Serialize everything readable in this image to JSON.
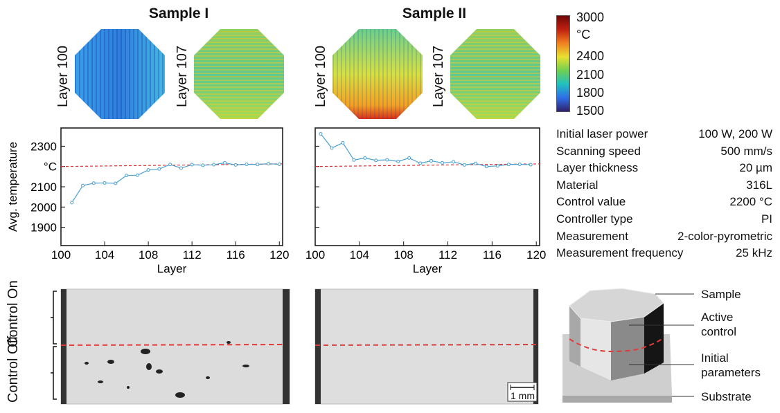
{
  "samples": [
    {
      "title": "Sample I",
      "layers": [
        "Layer 100",
        "Layer 107"
      ]
    },
    {
      "title": "Sample II",
      "layers": [
        "Layer 100",
        "Layer 107"
      ]
    }
  ],
  "colorbar": {
    "unit": "°C",
    "ticks": [
      "3000",
      "2400",
      "2100",
      "1800",
      "1500"
    ],
    "colormap": "jet",
    "range": [
      1500,
      3000
    ]
  },
  "chart_data": [
    {
      "type": "line",
      "xlabel": "Layer",
      "ylabel": "Avg. temperature",
      "xlim": [
        100,
        120.3
      ],
      "ylim": [
        1810,
        2390
      ],
      "xticks": [
        "100",
        "104",
        "108",
        "112",
        "116",
        "120"
      ],
      "yticks": [
        {
          "v": 2300,
          "label": "2300"
        },
        {
          "v": 2200,
          "label": "°C"
        },
        {
          "v": 2100,
          "label": "2100"
        },
        {
          "v": 2000,
          "label": "2000"
        },
        {
          "v": 1900,
          "label": "1900"
        }
      ],
      "grid": false,
      "series_color": "#4a9fd0",
      "reference_color": "#e03030",
      "reference": {
        "x": [
          100,
          120.3
        ],
        "y": [
          2200,
          2213
        ]
      },
      "x": [
        101,
        102,
        103,
        104,
        105,
        106,
        107,
        108,
        109,
        110,
        111,
        112,
        113,
        114,
        115,
        116,
        117,
        118,
        119,
        120
      ],
      "y": [
        2022,
        2106,
        2118,
        2119,
        2117,
        2156,
        2157,
        2183,
        2188,
        2210,
        2192,
        2209,
        2206,
        2209,
        2218,
        2208,
        2211,
        2210,
        2214,
        2211
      ]
    },
    {
      "type": "line",
      "xlabel": "Layer",
      "ylabel": "",
      "xlim": [
        100,
        120.3
      ],
      "ylim": [
        1810,
        2390
      ],
      "xticks": [
        "100",
        "104",
        "108",
        "112",
        "116",
        "120"
      ],
      "yticks": [
        {
          "v": 2300,
          "label": ""
        },
        {
          "v": 2200,
          "label": ""
        },
        {
          "v": 2100,
          "label": ""
        },
        {
          "v": 2000,
          "label": ""
        },
        {
          "v": 1900,
          "label": ""
        }
      ],
      "grid": false,
      "series_color": "#4a9fd0",
      "reference_color": "#e03030",
      "reference": {
        "x": [
          100,
          120.3
        ],
        "y": [
          2200,
          2213
        ]
      },
      "x": [
        100.5,
        101.5,
        102.5,
        103.5,
        104.5,
        105.5,
        106.5,
        107.5,
        108.5,
        109.5,
        110.5,
        111.5,
        112.5,
        113.5,
        114.5,
        115.5,
        116.5,
        117.5,
        118.5,
        119.5
      ],
      "y": [
        2361,
        2291,
        2317,
        2232,
        2242,
        2230,
        2233,
        2225,
        2242,
        2216,
        2228,
        2218,
        2223,
        2208,
        2215,
        2200,
        2203,
        2210,
        2211,
        2209
      ]
    }
  ],
  "params": [
    {
      "k": "Initial laser power",
      "v": "100 W, 200 W"
    },
    {
      "k": "Scanning speed",
      "v": "500 mm/s"
    },
    {
      "k": "Layer thickness",
      "v": "20 µm"
    },
    {
      "k": "Material",
      "v": "316L"
    },
    {
      "k": "Control value",
      "v": "2200 °C"
    },
    {
      "k": "Controller type",
      "v": "PI"
    },
    {
      "k": "Measurement",
      "v": "2-color-pyrometric"
    },
    {
      "k": "Measurement frequency",
      "v": "25 kHz"
    }
  ],
  "micrograph": {
    "on_label": "Control On",
    "off_label": "Control Off",
    "scale": "1 mm"
  },
  "schematic": {
    "labels": [
      "Sample",
      "Active control",
      "Initial parameters",
      "Substrate"
    ]
  }
}
